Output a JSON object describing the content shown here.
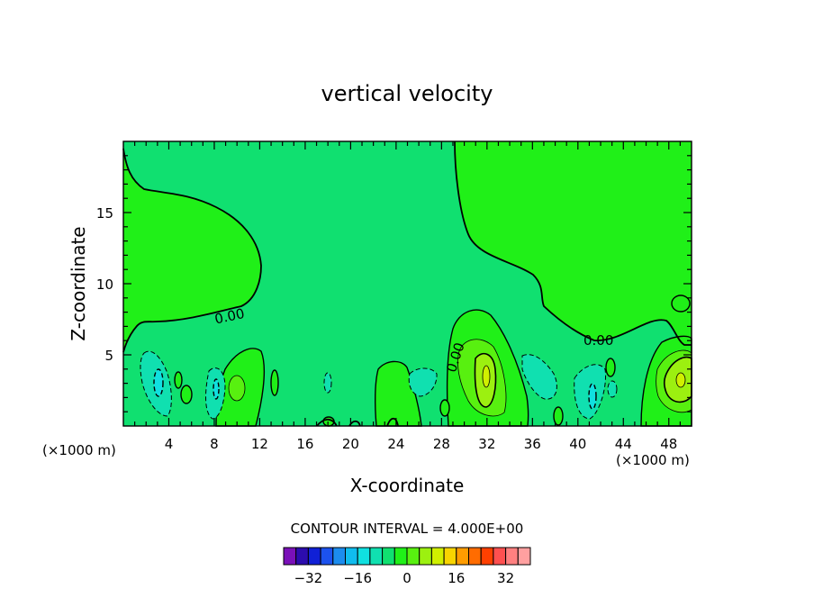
{
  "chart_data": {
    "type": "contour",
    "title": "vertical velocity",
    "xlabel": "X-coordinate",
    "ylabel": "Z-coordinate",
    "x_unit_label": "(×1000 m)",
    "y_unit_label": "(×1000 m)",
    "xlim": [
      0,
      50
    ],
    "ylim": [
      0,
      20
    ],
    "x_ticks": [
      4,
      8,
      12,
      16,
      20,
      24,
      28,
      32,
      36,
      40,
      44,
      48
    ],
    "y_ticks": [
      5,
      10,
      15
    ],
    "contour_interval_text": "CONTOUR INTERVAL = 4.000E+00",
    "contour_labels": [
      {
        "text": "0.00",
        "x": 9.5,
        "y": 8.0
      },
      {
        "text": "0.00",
        "x": 28.5,
        "y": 4.8
      },
      {
        "text": "0.00",
        "x": 42.0,
        "y": 6.0
      }
    ],
    "colorbar": {
      "tick_labels": [
        "−32",
        "−16",
        "0",
        "16",
        "32"
      ],
      "tick_values": [
        -32,
        -16,
        0,
        16,
        32
      ],
      "range": [
        -40,
        40
      ],
      "step": 4,
      "colors": [
        "#7a10b8",
        "#2c0cae",
        "#1020d6",
        "#1c52ee",
        "#1c8cee",
        "#10bcee",
        "#10e0e0",
        "#10e0b0",
        "#10e070",
        "#20f018",
        "#58f010",
        "#9cf010",
        "#d0f000",
        "#f8d400",
        "#ff9c00",
        "#ff6c00",
        "#ff4000",
        "#ff5050",
        "#ff8080",
        "#ffa0a0"
      ]
    },
    "field_colors": {
      "zero_band": "#10e070",
      "positive_weak": "#20f018",
      "positive_moderate": "#58f010",
      "positive_strong": "#9cf010",
      "negative_weak": "#10e0b0",
      "negative_moderate": "#10e0e0"
    }
  }
}
